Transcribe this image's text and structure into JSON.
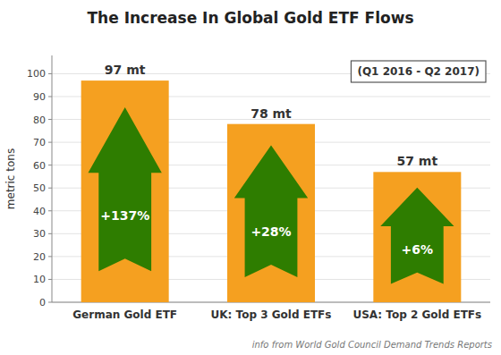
{
  "chart_data": {
    "type": "bar",
    "title": "The Increase In Global Gold ETF Flows",
    "subtitle": "(Q1 2016 - Q2 2017)",
    "categories": [
      "German Gold ETF",
      "UK: Top 3 Gold ETFs",
      "USA: Top 2 Gold ETFs"
    ],
    "values": [
      97,
      78,
      57
    ],
    "value_labels": [
      "97 mt",
      "78 mt",
      "57 mt"
    ],
    "data_labels": true,
    "annotations": [
      "+137%",
      "+28%",
      "+6%"
    ],
    "color": "#F5A020",
    "ylabel": "metric tons",
    "ylim": [
      0,
      108
    ],
    "yticks": [
      0,
      10,
      20,
      30,
      40,
      50,
      60,
      70,
      80,
      90,
      100
    ],
    "grid": true,
    "footnote": "info from World Gold Council Demand Trends Reports"
  }
}
